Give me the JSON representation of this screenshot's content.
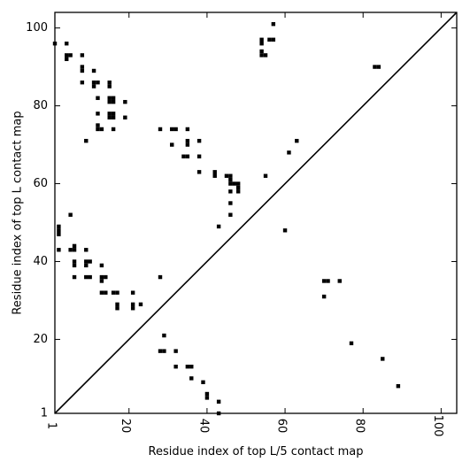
{
  "chart_data": {
    "type": "scatter",
    "title": "",
    "xlabel": "Residue index of top L/5 contact map",
    "ylabel": "Residue index of top L contact map",
    "xlim": [
      1,
      104
    ],
    "ylim": [
      1,
      104
    ],
    "x_ticks": [
      1,
      20,
      40,
      60,
      80,
      100
    ],
    "y_ticks": [
      1,
      20,
      40,
      60,
      80,
      100
    ],
    "diagonal": true,
    "marker": "square",
    "marker_color": "#000000",
    "grid": false,
    "series": [
      {
        "points": [
          [
            1,
            96
          ],
          [
            4,
            96
          ],
          [
            4,
            92
          ],
          [
            4,
            93
          ],
          [
            5,
            93
          ],
          [
            8,
            93
          ],
          [
            8,
            90
          ],
          [
            8,
            89
          ],
          [
            8,
            86
          ],
          [
            11,
            89
          ],
          [
            11,
            86
          ],
          [
            11,
            85
          ],
          [
            12,
            86
          ],
          [
            15,
            86
          ],
          [
            15,
            85
          ],
          [
            12,
            82
          ],
          [
            15,
            82
          ],
          [
            16,
            82
          ],
          [
            15,
            81
          ],
          [
            16,
            81
          ],
          [
            19,
            81
          ],
          [
            12,
            78
          ],
          [
            15,
            78
          ],
          [
            16,
            78
          ],
          [
            15,
            77
          ],
          [
            16,
            77
          ],
          [
            19,
            77
          ],
          [
            9,
            71
          ],
          [
            12,
            75
          ],
          [
            12,
            74
          ],
          [
            13,
            74
          ],
          [
            16,
            74
          ],
          [
            28,
            74
          ],
          [
            31,
            74
          ],
          [
            32,
            74
          ],
          [
            35,
            74
          ],
          [
            31,
            70
          ],
          [
            35,
            71
          ],
          [
            35,
            70
          ],
          [
            38,
            71
          ],
          [
            34,
            67
          ],
          [
            35,
            67
          ],
          [
            38,
            67
          ],
          [
            38,
            63
          ],
          [
            42,
            63
          ],
          [
            42,
            62
          ],
          [
            45,
            62
          ],
          [
            46,
            62
          ],
          [
            46,
            61
          ],
          [
            46,
            60
          ],
          [
            47,
            60
          ],
          [
            48,
            60
          ],
          [
            48,
            59
          ],
          [
            48,
            58
          ],
          [
            46,
            58
          ],
          [
            46,
            55
          ],
          [
            46,
            52
          ],
          [
            43,
            49
          ],
          [
            54,
            97
          ],
          [
            54,
            96
          ],
          [
            57,
            97
          ],
          [
            56,
            97
          ],
          [
            57,
            101
          ],
          [
            54,
            94
          ],
          [
            54,
            93
          ],
          [
            55,
            93
          ],
          [
            55,
            62
          ],
          [
            61,
            68
          ],
          [
            63,
            71
          ],
          [
            60,
            48
          ],
          [
            2,
            49
          ],
          [
            2,
            48
          ],
          [
            2,
            47
          ],
          [
            5,
            52
          ],
          [
            2,
            43
          ],
          [
            5,
            43
          ],
          [
            6,
            43
          ],
          [
            6,
            44
          ],
          [
            9,
            43
          ],
          [
            6,
            40
          ],
          [
            6,
            39
          ],
          [
            9,
            40
          ],
          [
            10,
            40
          ],
          [
            9,
            39
          ],
          [
            6,
            36
          ],
          [
            9,
            36
          ],
          [
            10,
            36
          ],
          [
            13,
            39
          ],
          [
            13,
            36
          ],
          [
            14,
            36
          ],
          [
            13,
            35
          ],
          [
            13,
            32
          ],
          [
            14,
            32
          ],
          [
            16,
            32
          ],
          [
            17,
            32
          ],
          [
            21,
            32
          ],
          [
            17,
            29
          ],
          [
            17,
            28
          ],
          [
            21,
            29
          ],
          [
            21,
            28
          ],
          [
            23,
            29
          ],
          [
            28,
            36
          ],
          [
            29,
            21
          ],
          [
            28,
            17
          ],
          [
            29,
            17
          ],
          [
            32,
            17
          ],
          [
            32,
            13
          ],
          [
            35,
            13
          ],
          [
            36,
            13
          ],
          [
            36,
            10
          ],
          [
            39,
            9
          ],
          [
            40,
            6
          ],
          [
            40,
            5
          ],
          [
            43,
            4
          ],
          [
            43,
            1
          ],
          [
            70,
            35
          ],
          [
            71,
            35
          ],
          [
            74,
            35
          ],
          [
            70,
            31
          ],
          [
            77,
            19
          ],
          [
            83,
            90
          ],
          [
            84,
            90
          ],
          [
            85,
            15
          ],
          [
            89,
            8
          ]
        ]
      }
    ]
  }
}
